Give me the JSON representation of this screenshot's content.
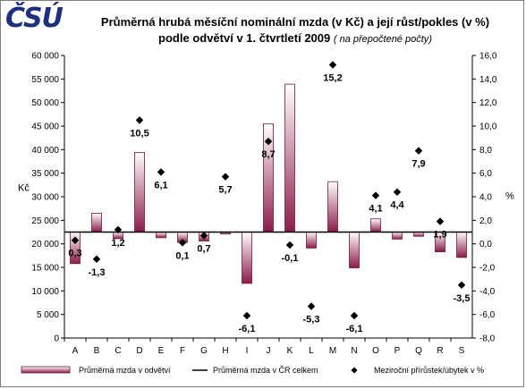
{
  "logo": "ČSÚ",
  "header": {
    "title_line1": "Průměrná hrubá měsíční nominální mzda (v Kč) a její růst/pokles (v %)",
    "title_line2": "podle odvětví v 1. čtvrtletí 2009",
    "title_note": "( na přepočtené počty)"
  },
  "chart_data": {
    "type": "bar",
    "title": "Průměrná hrubá měsíční nominální mzda (v Kč) a její růst/pokles (v %) podle odvětví v 1. čtvrtletí 2009 ( na přepočtené počty)",
    "categories": [
      "A",
      "B",
      "C",
      "D",
      "E",
      "F",
      "G",
      "H",
      "I",
      "J",
      "K",
      "L",
      "M",
      "N",
      "O",
      "P",
      "Q",
      "R",
      "S"
    ],
    "baseline_wage": 22500,
    "series": [
      {
        "name": "Průměrná mzda v odvětví",
        "type": "bar",
        "axis": "left",
        "values": [
          15800,
          26500,
          21100,
          39400,
          21300,
          20300,
          20600,
          22100,
          11600,
          45500,
          53900,
          19100,
          33200,
          14900,
          25300,
          21000,
          21600,
          18300,
          17100
        ]
      },
      {
        "name": "Průměrná mzda v ČR celkem",
        "type": "line",
        "axis": "left",
        "values": [
          22500,
          22500,
          22500,
          22500,
          22500,
          22500,
          22500,
          22500,
          22500,
          22500,
          22500,
          22500,
          22500,
          22500,
          22500,
          22500,
          22500,
          22500,
          22500
        ]
      },
      {
        "name": "Meziroční přírůstek/úbytek v %",
        "type": "scatter",
        "axis": "right",
        "values": [
          0.3,
          -1.3,
          1.2,
          10.5,
          6.1,
          0.1,
          0.7,
          5.7,
          -6.1,
          8.7,
          -0.1,
          -5.3,
          15.2,
          -6.1,
          4.1,
          4.4,
          7.9,
          1.9,
          -3.5
        ],
        "labels": [
          "0,3",
          "-1,3",
          "1,2",
          "10,5",
          "6,1",
          "0,1",
          "0,7",
          "5,7",
          "-6,1",
          "8,7",
          "-0,1",
          "-5,3",
          "15,2",
          "-6,1",
          "4,1",
          "4,4",
          "7,9",
          "1,9",
          "-3,5"
        ]
      }
    ],
    "ylabel": "Kč",
    "ylabel_right": "%",
    "ylim": [
      0,
      60000
    ],
    "ylim_right": [
      -8,
      16
    ],
    "yticks": [
      "0",
      "5 000",
      "10 000",
      "15 000",
      "20 000",
      "25 000",
      "30 000",
      "35 000",
      "40 000",
      "45 000",
      "50 000",
      "55 000",
      "60 000"
    ],
    "yticks_right": [
      "-8,0",
      "-6,0",
      "-4,0",
      "-2,0",
      "0,0",
      "2,0",
      "4,0",
      "6,0",
      "8,0",
      "10,0",
      "12,0",
      "14,0",
      "16,0"
    ],
    "grid": false,
    "legend_position": "bottom",
    "colors": {
      "bar_top": "#ffffff",
      "bar_bottom": "#8b1a4a",
      "bar_border": "#6b1d3a",
      "line": "#000000",
      "marker": "#000000"
    }
  }
}
